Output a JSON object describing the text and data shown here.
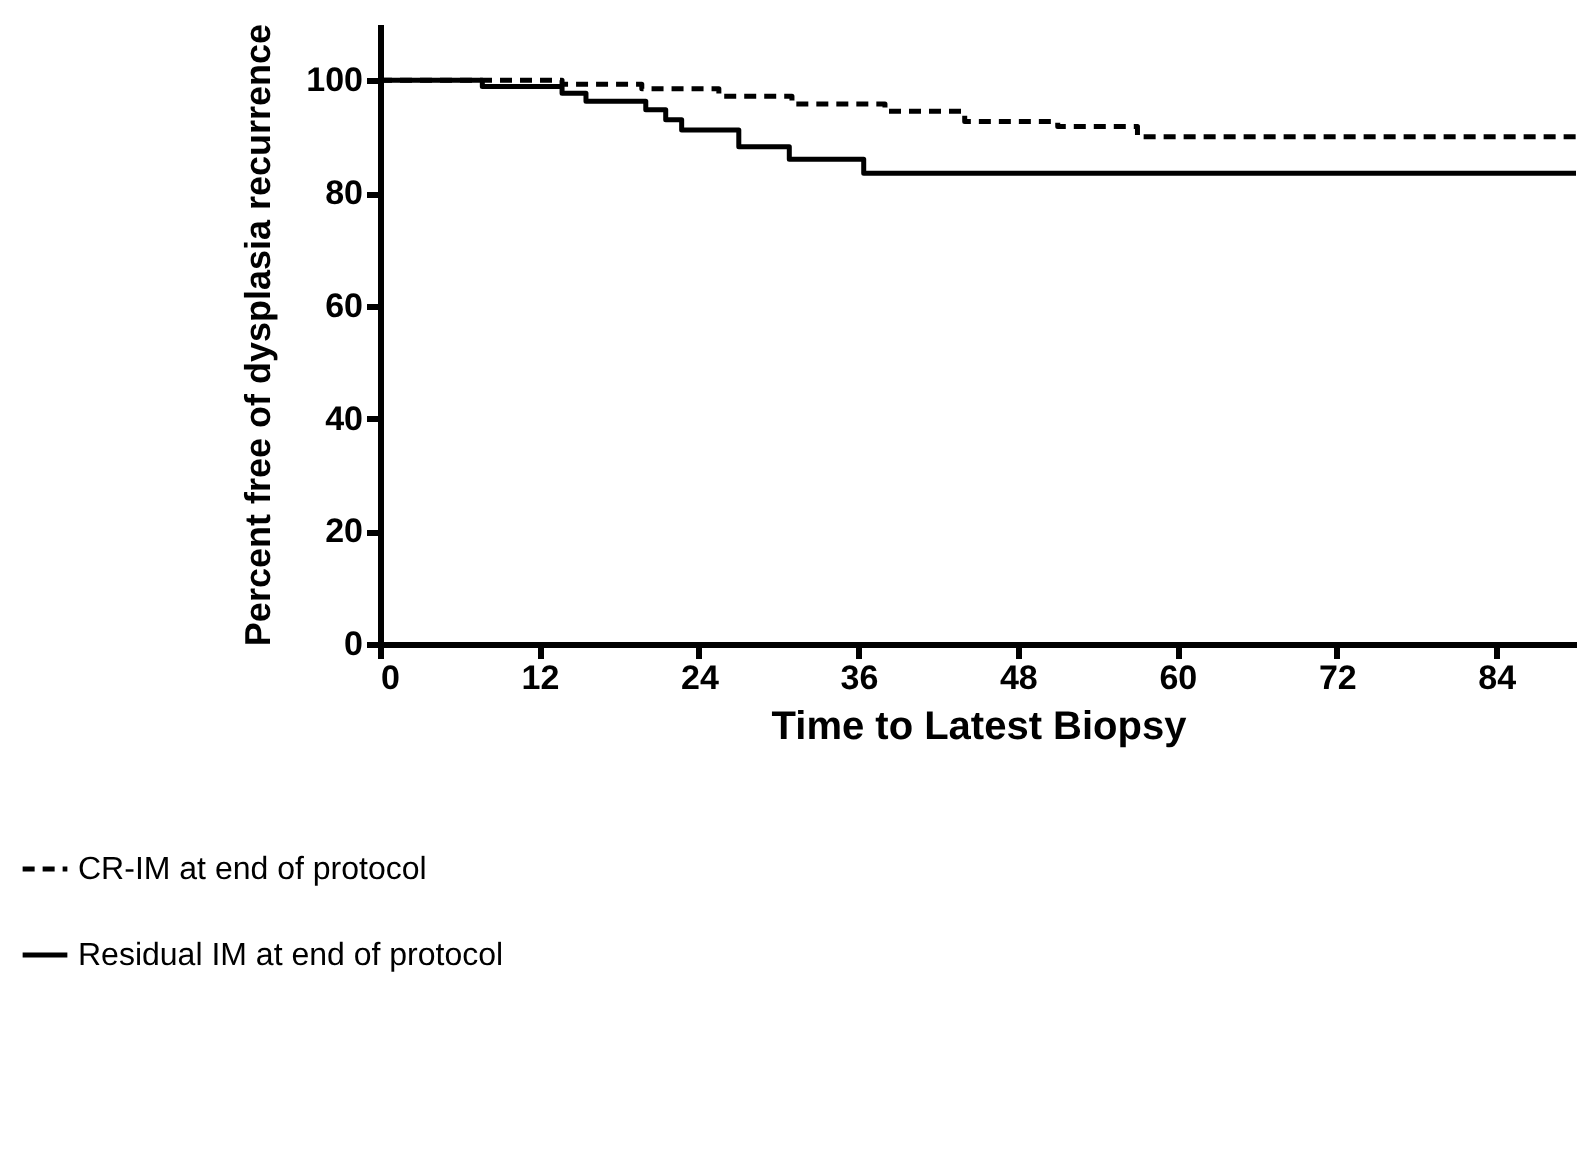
{
  "chart_data": {
    "type": "step",
    "xlabel": "Time to Latest Biopsy",
    "ylabel": "Percent free of dysplasia recurrence",
    "xlim": [
      0,
      90
    ],
    "ylim": [
      0,
      110
    ],
    "xticks": [
      0,
      12,
      24,
      36,
      48,
      60,
      72,
      84
    ],
    "yticks": [
      0,
      20,
      40,
      60,
      80,
      100
    ],
    "grid": false,
    "legend": "bottom left",
    "series": [
      {
        "name": "CR-IM at end of protocol",
        "color": "#000000",
        "line_style": "dashed",
        "x": [
          0,
          13.7,
          19.7,
          25.5,
          31,
          38,
          44,
          51,
          57,
          90
        ],
        "values": [
          100,
          99.3,
          98.5,
          97.2,
          95.8,
          94.5,
          92.7,
          91.8,
          90,
          90
        ]
      },
      {
        "name": "Residual IM at end of protocol",
        "color": "#000000",
        "line_style": "solid",
        "x": [
          0,
          7.7,
          13.7,
          15.5,
          20,
          21.5,
          22.7,
          27,
          30.8,
          36.4,
          90
        ],
        "values": [
          100,
          98.9,
          97.7,
          96.3,
          94.8,
          93,
          91.2,
          88.2,
          86,
          83.5,
          83.5
        ]
      }
    ]
  }
}
